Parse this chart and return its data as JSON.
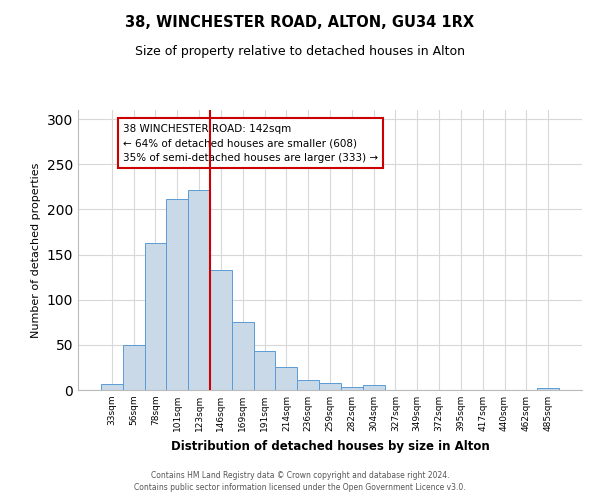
{
  "title": "38, WINCHESTER ROAD, ALTON, GU34 1RX",
  "subtitle": "Size of property relative to detached houses in Alton",
  "xlabel": "Distribution of detached houses by size in Alton",
  "ylabel": "Number of detached properties",
  "bar_labels": [
    "33sqm",
    "56sqm",
    "78sqm",
    "101sqm",
    "123sqm",
    "146sqm",
    "169sqm",
    "191sqm",
    "214sqm",
    "236sqm",
    "259sqm",
    "282sqm",
    "304sqm",
    "327sqm",
    "349sqm",
    "372sqm",
    "395sqm",
    "417sqm",
    "440sqm",
    "462sqm",
    "485sqm"
  ],
  "bar_values": [
    7,
    50,
    163,
    211,
    221,
    133,
    75,
    43,
    25,
    11,
    8,
    3,
    5,
    0,
    0,
    0,
    0,
    0,
    0,
    0,
    2
  ],
  "bar_color": "#c9d9e8",
  "bar_edgecolor": "#5b9bd5",
  "ylim": [
    0,
    310
  ],
  "yticks": [
    0,
    50,
    100,
    150,
    200,
    250,
    300
  ],
  "property_line_index": 5,
  "property_line_color": "#cc0000",
  "annotation_title": "38 WINCHESTER ROAD: 142sqm",
  "annotation_line1": "← 64% of detached houses are smaller (608)",
  "annotation_line2": "35% of semi-detached houses are larger (333) →",
  "annotation_box_edgecolor": "#cc0000",
  "footer_line1": "Contains HM Land Registry data © Crown copyright and database right 2024.",
  "footer_line2": "Contains public sector information licensed under the Open Government Licence v3.0.",
  "bg_color": "#ffffff",
  "grid_color": "#d8d8d8"
}
